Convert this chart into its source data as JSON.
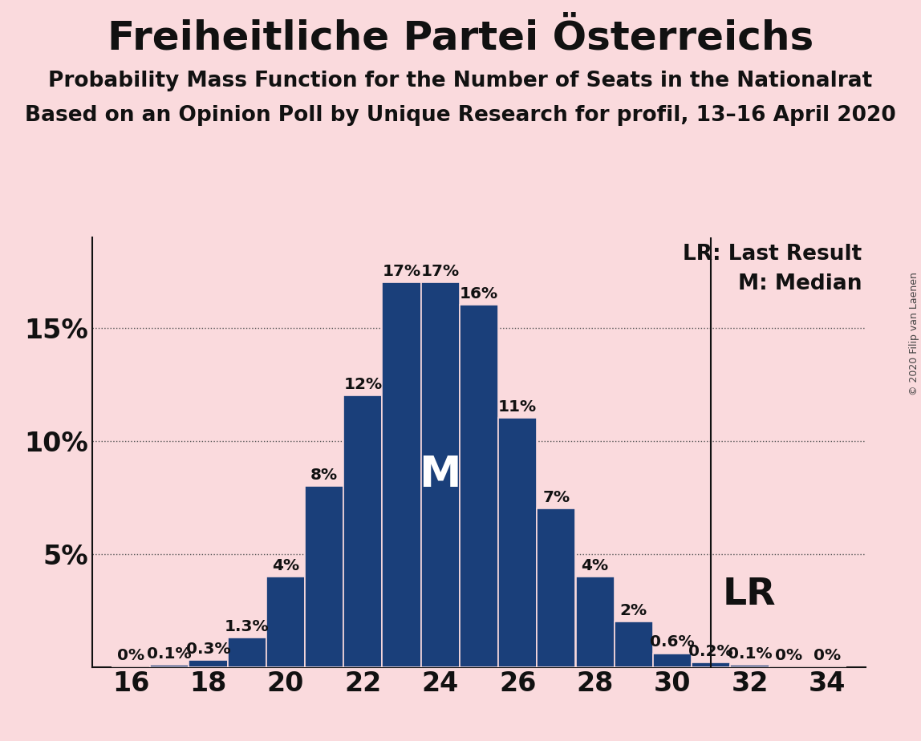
{
  "title": "Freiheitliche Partei Österreichs",
  "subtitle1": "Probability Mass Function for the Number of Seats in the Nationalrat",
  "subtitle2": "Based on an Opinion Poll by Unique Research for profil, 13–16 April 2020",
  "copyright": "© 2020 Filip van Laenen",
  "legend_lr": "LR: Last Result",
  "legend_m": "M: Median",
  "background_color": "#FADADD",
  "bar_color": "#1a3f7a",
  "bar_edge_color": "#FADADD",
  "seats": [
    16,
    17,
    18,
    19,
    20,
    21,
    22,
    23,
    24,
    25,
    26,
    27,
    28,
    29,
    30,
    31,
    32,
    33,
    34
  ],
  "probabilities": [
    0.0,
    0.1,
    0.3,
    1.3,
    4.0,
    8.0,
    12.0,
    17.0,
    17.0,
    16.0,
    11.0,
    7.0,
    4.0,
    2.0,
    0.6,
    0.2,
    0.1,
    0.0,
    0.0
  ],
  "labels": [
    "0%",
    "0.1%",
    "0.3%",
    "1.3%",
    "4%",
    "8%",
    "12%",
    "17%",
    "17%",
    "16%",
    "11%",
    "7%",
    "4%",
    "2%",
    "0.6%",
    "0.2%",
    "0.1%",
    "0%",
    "0%"
  ],
  "median_seat": 24,
  "lr_seat": 31,
  "xlim": [
    15,
    35
  ],
  "ylim": [
    0,
    19
  ],
  "xticks": [
    16,
    18,
    20,
    22,
    24,
    26,
    28,
    30,
    32,
    34
  ],
  "ytick_vals": [
    5,
    10,
    15
  ],
  "ytick_labels": [
    "5%",
    "10%",
    "15%"
  ],
  "title_fontsize": 36,
  "subtitle_fontsize": 19,
  "label_fontsize": 14.5,
  "axis_tick_fontsize": 24,
  "legend_fontsize": 19,
  "median_label_fontsize": 38,
  "lr_label_fontsize": 34,
  "copyright_fontsize": 9
}
